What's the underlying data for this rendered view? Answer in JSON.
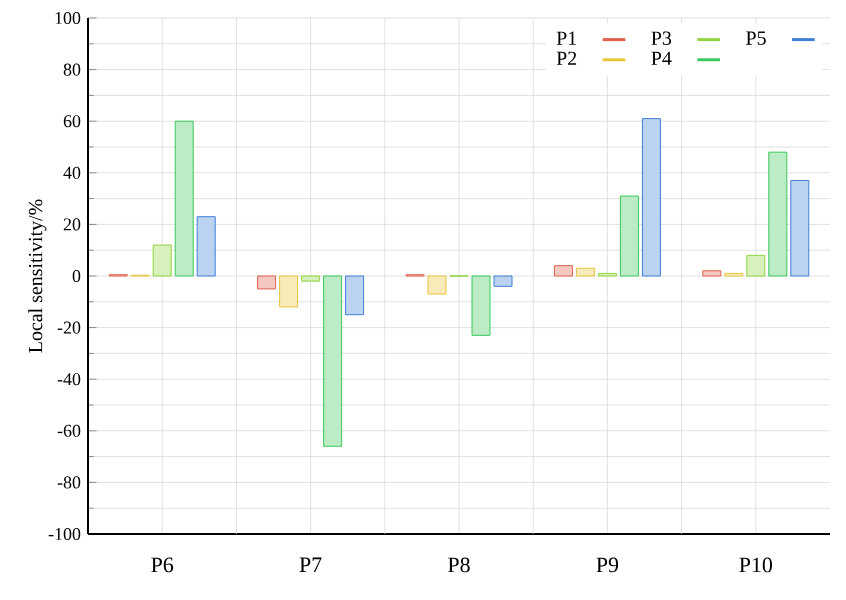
{
  "chart_data": {
    "type": "bar",
    "ylabel": "Local sensitivity/%",
    "categories": [
      "P6",
      "P7",
      "P8",
      "P9",
      "P10"
    ],
    "series": [
      {
        "name": "P1",
        "color": "#e0604c",
        "values": [
          0.5,
          -5,
          0.5,
          4,
          2
        ]
      },
      {
        "name": "P2",
        "color": "#e8c53a",
        "values": [
          0.3,
          -12,
          -7,
          3,
          1
        ]
      },
      {
        "name": "P3",
        "color": "#8fd43c",
        "values": [
          12,
          -2,
          0,
          1,
          8
        ]
      },
      {
        "name": "P4",
        "color": "#3cc85a",
        "values": [
          60,
          -66,
          -23,
          31,
          48
        ]
      },
      {
        "name": "P5",
        "color": "#3f7fd6",
        "values": [
          23,
          -15,
          -4,
          61,
          37
        ]
      }
    ],
    "ylim": [
      -100,
      100
    ],
    "yticks": [
      -100,
      -80,
      -60,
      -40,
      -20,
      0,
      20,
      40,
      60,
      80,
      100
    ],
    "grid": true,
    "legend": "top right"
  }
}
